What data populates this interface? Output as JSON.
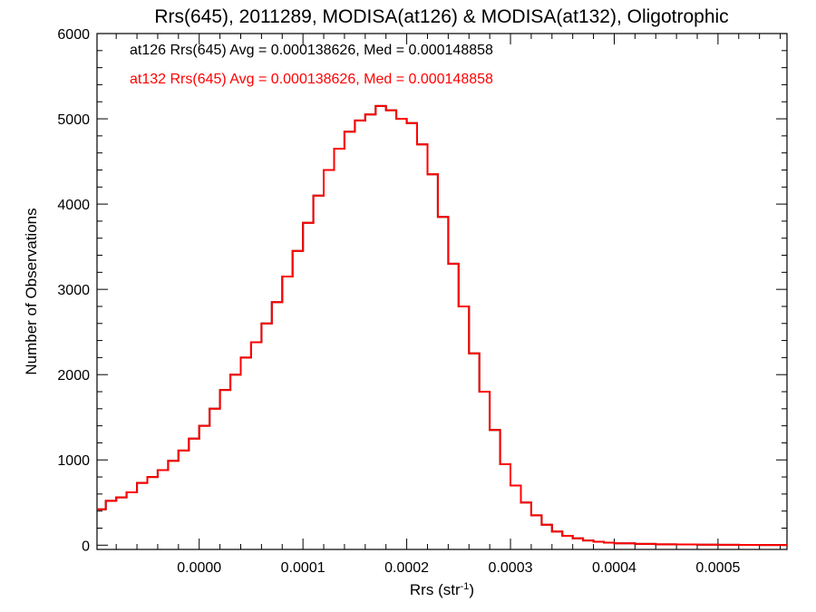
{
  "chart_data": {
    "type": "histogram-step",
    "title": "Rrs(645), 2011289, MODISA(at126) & MODISA(at132), Oligotrophic",
    "xlabel": "Rrs (str",
    "xlabel_superscript": "-1",
    "xlabel_suffix": ")",
    "ylabel": "Number of Observations",
    "xlim": [
      -9.85e-05,
      0.0005665
    ],
    "ylim": [
      -50,
      6000
    ],
    "x_ticks": [
      0.0,
      0.0001,
      0.0002,
      0.0003,
      0.0004,
      0.0005
    ],
    "x_tick_labels": [
      "0.0000",
      "0.0001",
      "0.0002",
      "0.0003",
      "0.0004",
      "0.0005"
    ],
    "y_ticks": [
      0,
      1000,
      2000,
      3000,
      4000,
      5000,
      6000
    ],
    "y_tick_labels": [
      "0",
      "1000",
      "2000",
      "3000",
      "4000",
      "5000",
      "6000"
    ],
    "grid": false,
    "legend_position": "top-left",
    "series": [
      {
        "name": "at126 Rrs(645) Avg = 0.000138626, Med = 0.000148858",
        "color": "#000000",
        "x": [
          -9.85e-05,
          -9e-05,
          -8e-05,
          -7e-05,
          -6e-05,
          -5e-05,
          -4e-05,
          -3e-05,
          -2e-05,
          -1e-05,
          0.0,
          1e-05,
          2e-05,
          3e-05,
          4e-05,
          5e-05,
          6e-05,
          7e-05,
          8e-05,
          9e-05,
          0.0001,
          0.00011,
          0.00012,
          0.00013,
          0.00014,
          0.00015,
          0.00016,
          0.00017,
          0.00018,
          0.00019,
          0.0002,
          0.00021,
          0.00022,
          0.00023,
          0.00024,
          0.00025,
          0.00026,
          0.00027,
          0.00028,
          0.00029,
          0.0003,
          0.00031,
          0.00032,
          0.00033,
          0.00034,
          0.00035,
          0.00036,
          0.00037,
          0.00038,
          0.00039,
          0.0004,
          0.00042,
          0.00044,
          0.00046,
          0.00048,
          0.0005,
          0.00052,
          0.00054,
          0.00056
        ],
        "y": [
          420,
          520,
          560,
          620,
          730,
          800,
          880,
          990,
          1110,
          1250,
          1400,
          1600,
          1820,
          2000,
          2200,
          2380,
          2600,
          2850,
          3150,
          3450,
          3780,
          4100,
          4400,
          4650,
          4850,
          4980,
          5050,
          5150,
          5100,
          5000,
          4950,
          4700,
          4350,
          3850,
          3300,
          2800,
          2250,
          1800,
          1350,
          950,
          700,
          500,
          350,
          240,
          160,
          110,
          80,
          55,
          40,
          30,
          22,
          15,
          10,
          8,
          6,
          4,
          3,
          2,
          2
        ]
      },
      {
        "name": "at132 Rrs(645) Avg = 0.000138626, Med = 0.000148858",
        "color": "#ff0000",
        "x": [
          -9.85e-05,
          -9e-05,
          -8e-05,
          -7e-05,
          -6e-05,
          -5e-05,
          -4e-05,
          -3e-05,
          -2e-05,
          -1e-05,
          0.0,
          1e-05,
          2e-05,
          3e-05,
          4e-05,
          5e-05,
          6e-05,
          7e-05,
          8e-05,
          9e-05,
          0.0001,
          0.00011,
          0.00012,
          0.00013,
          0.00014,
          0.00015,
          0.00016,
          0.00017,
          0.00018,
          0.00019,
          0.0002,
          0.00021,
          0.00022,
          0.00023,
          0.00024,
          0.00025,
          0.00026,
          0.00027,
          0.00028,
          0.00029,
          0.0003,
          0.00031,
          0.00032,
          0.00033,
          0.00034,
          0.00035,
          0.00036,
          0.00037,
          0.00038,
          0.00039,
          0.0004,
          0.00042,
          0.00044,
          0.00046,
          0.00048,
          0.0005,
          0.00052,
          0.00054,
          0.00056
        ],
        "y": [
          420,
          520,
          560,
          620,
          730,
          800,
          880,
          990,
          1110,
          1250,
          1400,
          1600,
          1820,
          2000,
          2200,
          2380,
          2600,
          2850,
          3150,
          3450,
          3780,
          4100,
          4400,
          4650,
          4850,
          4980,
          5050,
          5150,
          5100,
          5000,
          4950,
          4700,
          4350,
          3850,
          3300,
          2800,
          2250,
          1800,
          1350,
          950,
          700,
          500,
          350,
          240,
          160,
          110,
          80,
          55,
          40,
          30,
          22,
          15,
          10,
          8,
          6,
          4,
          3,
          2,
          2
        ]
      }
    ]
  }
}
